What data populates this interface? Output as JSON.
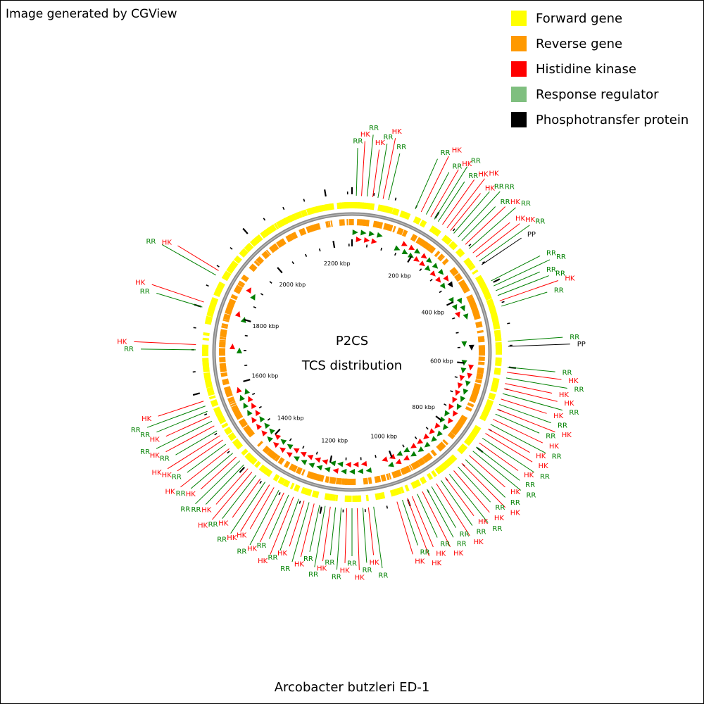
{
  "credit": "Image generated by CGView",
  "legend": [
    {
      "label": "Forward gene",
      "color": "#ffff00"
    },
    {
      "label": "Reverse gene",
      "color": "#ff9900"
    },
    {
      "label": "Histidine kinase",
      "color": "#ff0000"
    },
    {
      "label": "Response regulator",
      "color": "#7fbf7f"
    },
    {
      "label": "Phosphotransfer protein",
      "color": "#000000"
    }
  ],
  "center_title": "P2CS",
  "center_subtitle": "TCS distribution",
  "organism": "Arcobacter butzleri ED-1",
  "genome_kbp": 2260,
  "tick_labels": [
    "200 kbp",
    "400 kbp",
    "600 kbp",
    "800 kbp",
    "1000 kbp",
    "1200 kbp",
    "1400 kbp",
    "1600 kbp",
    "1800 kbp",
    "2000 kbp",
    "2200 kbp"
  ],
  "tick_positions_kbp": [
    200,
    400,
    600,
    800,
    1000,
    1200,
    1400,
    1600,
    1800,
    2000,
    2200
  ],
  "features": [
    {
      "t": "RR",
      "p": 10
    },
    {
      "t": "HK",
      "p": 22
    },
    {
      "t": "RR",
      "p": 35
    },
    {
      "t": "HK",
      "p": 48
    },
    {
      "t": "RR",
      "p": 60
    },
    {
      "t": "HK",
      "p": 72
    },
    {
      "t": "RR",
      "p": 85
    },
    {
      "t": "RR",
      "p": 150
    },
    {
      "t": "HK",
      "p": 165
    },
    {
      "t": "RR",
      "p": 178
    },
    {
      "t": "HK",
      "p": 190
    },
    {
      "t": "RR",
      "p": 200
    },
    {
      "t": "RR",
      "p": 210
    },
    {
      "t": "HK",
      "p": 222
    },
    {
      "t": "HK",
      "p": 235
    },
    {
      "t": "HK",
      "p": 245
    },
    {
      "t": "RR",
      "p": 255
    },
    {
      "t": "RR",
      "p": 268
    },
    {
      "t": "RR",
      "p": 280
    },
    {
      "t": "HK",
      "p": 292
    },
    {
      "t": "RR",
      "p": 305
    },
    {
      "t": "HK",
      "p": 318
    },
    {
      "t": "HK",
      "p": 330
    },
    {
      "t": "RR",
      "p": 342
    },
    {
      "t": "PP",
      "p": 352
    },
    {
      "t": "RR",
      "p": 395
    },
    {
      "t": "RR",
      "p": 408
    },
    {
      "t": "RR",
      "p": 420
    },
    {
      "t": "RR",
      "p": 432
    },
    {
      "t": "HK",
      "p": 445
    },
    {
      "t": "RR",
      "p": 458
    },
    {
      "t": "RR",
      "p": 540
    },
    {
      "t": "PP",
      "p": 552
    },
    {
      "t": "RR",
      "p": 600
    },
    {
      "t": "HK",
      "p": 612
    },
    {
      "t": "RR",
      "p": 625
    },
    {
      "t": "HK",
      "p": 638
    },
    {
      "t": "HK",
      "p": 650
    },
    {
      "t": "RR",
      "p": 662
    },
    {
      "t": "HK",
      "p": 675
    },
    {
      "t": "RR",
      "p": 688
    },
    {
      "t": "HK",
      "p": 700
    },
    {
      "t": "RR",
      "p": 712
    },
    {
      "t": "HK",
      "p": 725
    },
    {
      "t": "RR",
      "p": 738
    },
    {
      "t": "HK",
      "p": 750
    },
    {
      "t": "HK",
      "p": 762
    },
    {
      "t": "RR",
      "p": 775
    },
    {
      "t": "HK",
      "p": 788
    },
    {
      "t": "RR",
      "p": 800
    },
    {
      "t": "RR",
      "p": 812
    },
    {
      "t": "HK",
      "p": 825
    },
    {
      "t": "RR",
      "p": 838
    },
    {
      "t": "HK",
      "p": 850
    },
    {
      "t": "RR",
      "p": 862
    },
    {
      "t": "HK",
      "p": 875
    },
    {
      "t": "RR",
      "p": 888
    },
    {
      "t": "HK",
      "p": 900
    },
    {
      "t": "RR",
      "p": 912
    },
    {
      "t": "HK",
      "p": 925
    },
    {
      "t": "RR",
      "p": 938
    },
    {
      "t": "RR",
      "p": 950
    },
    {
      "t": "HK",
      "p": 962
    },
    {
      "t": "RR",
      "p": 975
    },
    {
      "t": "HK",
      "p": 988
    },
    {
      "t": "HK",
      "p": 1000
    },
    {
      "t": "RR",
      "p": 1012
    },
    {
      "t": "HK",
      "p": 1025
    },
    {
      "t": "RR",
      "p": 1080
    },
    {
      "t": "HK",
      "p": 1092
    },
    {
      "t": "RR",
      "p": 1105
    },
    {
      "t": "HK",
      "p": 1118
    },
    {
      "t": "RR",
      "p": 1130
    },
    {
      "t": "HK",
      "p": 1142
    },
    {
      "t": "RR",
      "p": 1155
    },
    {
      "t": "RR",
      "p": 1168
    },
    {
      "t": "HK",
      "p": 1180
    },
    {
      "t": "RR",
      "p": 1192
    },
    {
      "t": "RR",
      "p": 1205
    },
    {
      "t": "HK",
      "p": 1218
    },
    {
      "t": "RR",
      "p": 1230
    },
    {
      "t": "HK",
      "p": 1242
    },
    {
      "t": "RR",
      "p": 1255
    },
    {
      "t": "HK",
      "p": 1268
    },
    {
      "t": "RR",
      "p": 1280
    },
    {
      "t": "HK",
      "p": 1292
    },
    {
      "t": "RR",
      "p": 1305
    },
    {
      "t": "HK",
      "p": 1318
    },
    {
      "t": "HK",
      "p": 1330
    },
    {
      "t": "RR",
      "p": 1342
    },
    {
      "t": "HK",
      "p": 1355
    },
    {
      "t": "RR",
      "p": 1368
    },
    {
      "t": "HK",
      "p": 1380
    },
    {
      "t": "HK",
      "p": 1392
    },
    {
      "t": "RR",
      "p": 1405
    },
    {
      "t": "RR",
      "p": 1418
    },
    {
      "t": "HK",
      "p": 1430
    },
    {
      "t": "RR",
      "p": 1442
    },
    {
      "t": "HK",
      "p": 1455
    },
    {
      "t": "RR",
      "p": 1468
    },
    {
      "t": "HK",
      "p": 1480
    },
    {
      "t": "HK",
      "p": 1492
    },
    {
      "t": "RR",
      "p": 1505
    },
    {
      "t": "HK",
      "p": 1518
    },
    {
      "t": "RR",
      "p": 1530
    },
    {
      "t": "HK",
      "p": 1542
    },
    {
      "t": "RR",
      "p": 1555
    },
    {
      "t": "RR",
      "p": 1568
    },
    {
      "t": "HK",
      "p": 1580
    },
    {
      "t": "RR",
      "p": 1700
    },
    {
      "t": "HK",
      "p": 1712
    },
    {
      "t": "RR",
      "p": 1800
    },
    {
      "t": "HK",
      "p": 1812
    },
    {
      "t": "RR",
      "p": 1880
    },
    {
      "t": "HK",
      "p": 1892
    }
  ]
}
